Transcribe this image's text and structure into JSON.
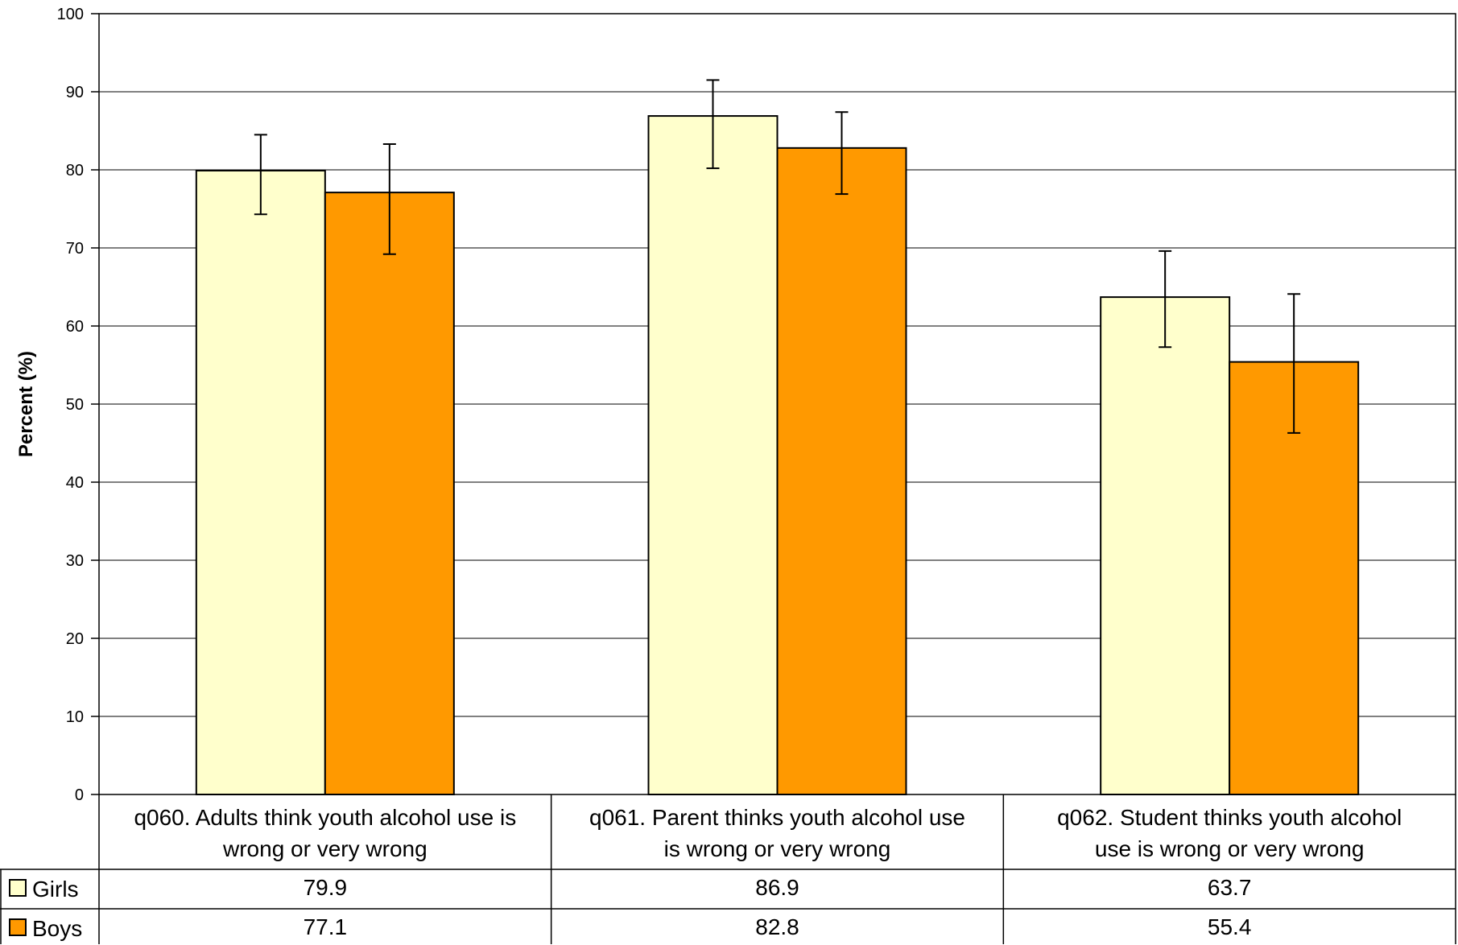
{
  "chart_data": {
    "type": "bar",
    "title": "",
    "xlabel": "",
    "ylabel": "Percent (%)",
    "ylim": [
      0,
      100
    ],
    "yticks": [
      0,
      10,
      20,
      30,
      40,
      50,
      60,
      70,
      80,
      90,
      100
    ],
    "grid": true,
    "legend": "data-table-left",
    "categories": [
      "q060. Adults think youth alcohol use is wrong or very wrong",
      "q061. Parent thinks youth alcohol use is wrong or very wrong",
      "q062. Student thinks youth alcohol use is wrong or very wrong"
    ],
    "category_lines": [
      [
        "q060. Adults think youth alcohol use is",
        "wrong or very wrong"
      ],
      [
        "q061. Parent thinks youth alcohol use",
        "is wrong or very wrong"
      ],
      [
        "q062. Student thinks youth alcohol",
        "use is wrong or very wrong"
      ]
    ],
    "series": [
      {
        "name": "Girls",
        "color": "#FFFFCC",
        "values": [
          79.9,
          86.9,
          63.7
        ],
        "labels": [
          "79.9",
          "86.9",
          "63.7"
        ],
        "error_low": [
          74.3,
          80.2,
          57.3
        ],
        "error_high": [
          84.5,
          91.5,
          69.6
        ]
      },
      {
        "name": "Boys",
        "color": "#FF9900",
        "values": [
          77.1,
          82.8,
          55.4
        ],
        "labels": [
          "77.1",
          "82.8",
          "55.4"
        ],
        "error_low": [
          69.2,
          76.9,
          46.3
        ],
        "error_high": [
          83.3,
          87.4,
          64.1
        ]
      }
    ]
  }
}
